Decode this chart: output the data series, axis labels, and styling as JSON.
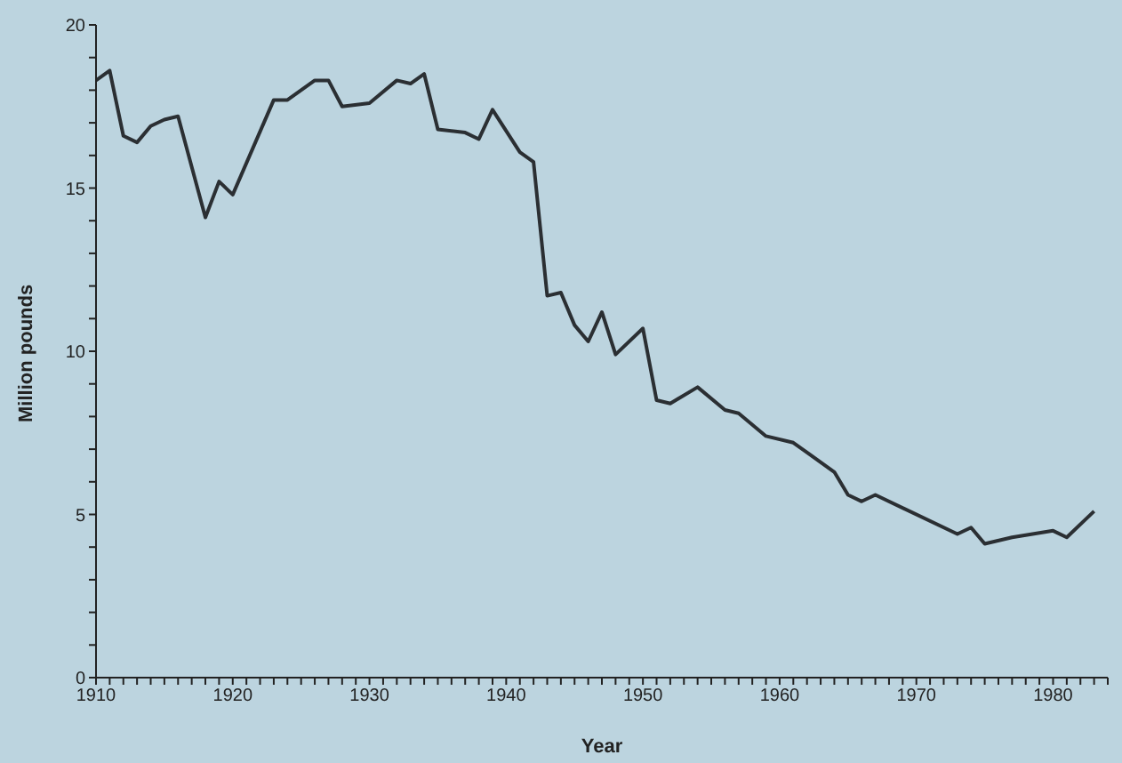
{
  "chart_data": {
    "type": "line",
    "xlabel": "Year",
    "ylabel": "Million pounds",
    "x": [
      1910,
      1911,
      1912,
      1913,
      1914,
      1915,
      1916,
      1918,
      1919,
      1920,
      1923,
      1924,
      1926,
      1927,
      1928,
      1930,
      1932,
      1933,
      1934,
      1935,
      1937,
      1938,
      1939,
      1941,
      1942,
      1943,
      1944,
      1945,
      1946,
      1947,
      1948,
      1950,
      1951,
      1952,
      1954,
      1956,
      1957,
      1959,
      1961,
      1964,
      1965,
      1966,
      1967,
      1973,
      1974,
      1975,
      1977,
      1980,
      1981,
      1983
    ],
    "series": [
      {
        "color": "#2b2f33",
        "values": [
          18.3,
          18.6,
          16.6,
          16.4,
          16.9,
          17.1,
          17.2,
          14.1,
          15.2,
          14.8,
          17.7,
          17.7,
          18.3,
          18.3,
          17.5,
          17.6,
          18.3,
          18.2,
          18.5,
          16.8,
          16.7,
          16.5,
          17.4,
          16.1,
          15.8,
          11.7,
          11.8,
          10.8,
          10.3,
          11.2,
          9.9,
          10.7,
          8.5,
          8.4,
          8.9,
          8.2,
          8.1,
          7.4,
          7.2,
          6.3,
          5.6,
          5.4,
          5.6,
          4.4,
          4.6,
          4.1,
          4.3,
          4.5,
          4.3,
          5.1
        ]
      }
    ],
    "xlim": [
      1910,
      1984
    ],
    "xticks": [
      1910,
      {
        "value": 1911,
        "label": null
      },
      {
        "value": 1912,
        "label": null
      },
      {
        "value": 1913,
        "label": null
      },
      {
        "value": 1914,
        "label": null
      },
      {
        "value": 1915,
        "label": null
      },
      {
        "value": 1916,
        "label": null
      },
      {
        "value": 1917,
        "label": null
      },
      {
        "value": 1918,
        "label": null
      },
      {
        "value": 1919,
        "label": null
      },
      1920,
      {
        "value": 1921,
        "label": null
      },
      {
        "value": 1922,
        "label": null
      },
      {
        "value": 1923,
        "label": null
      },
      {
        "value": 1924,
        "label": null
      },
      {
        "value": 1925,
        "label": null
      },
      {
        "value": 1926,
        "label": null
      },
      {
        "value": 1927,
        "label": null
      },
      {
        "value": 1928,
        "label": null
      },
      {
        "value": 1929,
        "label": null
      },
      1930,
      {
        "value": 1931,
        "label": null
      },
      {
        "value": 1932,
        "label": null
      },
      {
        "value": 1933,
        "label": null
      },
      {
        "value": 1934,
        "label": null
      },
      {
        "value": 1935,
        "label": null
      },
      {
        "value": 1936,
        "label": null
      },
      {
        "value": 1937,
        "label": null
      },
      {
        "value": 1938,
        "label": null
      },
      {
        "value": 1939,
        "label": null
      },
      1940,
      {
        "value": 1941,
        "label": null
      },
      {
        "value": 1942,
        "label": null
      },
      {
        "value": 1943,
        "label": null
      },
      {
        "value": 1944,
        "label": null
      },
      {
        "value": 1945,
        "label": null
      },
      {
        "value": 1946,
        "label": null
      },
      {
        "value": 1947,
        "label": null
      },
      {
        "value": 1948,
        "label": null
      },
      {
        "value": 1949,
        "label": null
      },
      1950,
      {
        "value": 1951,
        "label": null
      },
      {
        "value": 1952,
        "label": null
      },
      {
        "value": 1953,
        "label": null
      },
      {
        "value": 1954,
        "label": null
      },
      {
        "value": 1955,
        "label": null
      },
      {
        "value": 1956,
        "label": null
      },
      {
        "value": 1957,
        "label": null
      },
      {
        "value": 1958,
        "label": null
      },
      {
        "value": 1959,
        "label": null
      },
      1960,
      {
        "value": 1961,
        "label": null
      },
      {
        "value": 1962,
        "label": null
      },
      {
        "value": 1963,
        "label": null
      },
      {
        "value": 1964,
        "label": null
      },
      {
        "value": 1965,
        "label": null
      },
      {
        "value": 1966,
        "label": null
      },
      {
        "value": 1967,
        "label": null
      },
      {
        "value": 1968,
        "label": null
      },
      {
        "value": 1969,
        "label": null
      },
      1970,
      {
        "value": 1971,
        "label": null
      },
      {
        "value": 1972,
        "label": null
      },
      {
        "value": 1973,
        "label": null
      },
      {
        "value": 1974,
        "label": null
      },
      {
        "value": 1975,
        "label": null
      },
      {
        "value": 1976,
        "label": null
      },
      {
        "value": 1977,
        "label": null
      },
      {
        "value": 1978,
        "label": null
      },
      {
        "value": 1979,
        "label": null
      },
      1980,
      {
        "value": 1981,
        "label": null
      },
      {
        "value": 1982,
        "label": null
      },
      {
        "value": 1983,
        "label": null
      },
      {
        "value": 1984,
        "label": null
      }
    ],
    "ylim": [
      0,
      20
    ],
    "yticks": [
      0,
      {
        "value": 1,
        "label": null
      },
      {
        "value": 2,
        "label": null
      },
      {
        "value": 3,
        "label": null
      },
      {
        "value": 4,
        "label": null
      },
      5,
      {
        "value": 6,
        "label": null
      },
      {
        "value": 7,
        "label": null
      },
      {
        "value": 8,
        "label": null
      },
      {
        "value": 9,
        "label": null
      },
      10,
      {
        "value": 11,
        "label": null
      },
      {
        "value": 12,
        "label": null
      },
      {
        "value": 13,
        "label": null
      },
      {
        "value": 14,
        "label": null
      },
      15,
      {
        "value": 16,
        "label": null
      },
      {
        "value": 17,
        "label": null
      },
      {
        "value": 18,
        "label": null
      },
      {
        "value": 19,
        "label": null
      },
      20
    ],
    "grid": false,
    "legend": false,
    "marker": "none",
    "line_style": "solid"
  }
}
